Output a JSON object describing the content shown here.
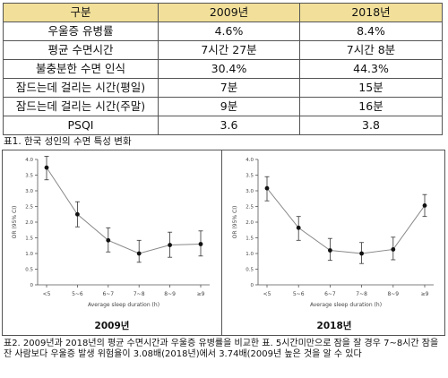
{
  "table": {
    "headers": [
      "구분",
      "2009년",
      "2018년"
    ],
    "rows": [
      [
        "우울증 유병률",
        "4.6%",
        "8.4%"
      ],
      [
        "평균 수면시간",
        "7시간 27분",
        "7시간 8분"
      ],
      [
        "불충분한 수면 인식",
        "30.4%",
        "44.3%"
      ],
      [
        "잠드는데 걸리는 시간(평일)",
        "7분",
        "15분"
      ],
      [
        "잠드는데 걸리는 시간(주말)",
        "9분",
        "16분"
      ],
      [
        "PSQI",
        "3.6",
        "3.8"
      ]
    ],
    "caption": "표1. 한국 성인의 수면 특성 변화"
  },
  "chart_data": [
    {
      "type": "line",
      "panel_label": "2009년",
      "xlabel": "Average sleep duration (h)",
      "ylabel": "OR (95% CI)",
      "categories": [
        "<5",
        "5~6",
        "6~7",
        "7~8",
        "8~9",
        "≥9"
      ],
      "values": [
        3.74,
        2.25,
        1.42,
        1.0,
        1.27,
        1.3
      ],
      "ci_low": [
        3.35,
        1.85,
        1.05,
        0.72,
        0.88,
        0.92
      ],
      "ci_high": [
        4.1,
        2.65,
        1.82,
        1.42,
        1.68,
        1.72
      ],
      "ylim": [
        0,
        4.0
      ],
      "yticks": [
        "0",
        "0.5",
        "1.0",
        "1.5",
        "2.0",
        "2.5",
        "3.0",
        "3.5",
        "4.0"
      ]
    },
    {
      "type": "line",
      "panel_label": "2018년",
      "xlabel": "Average sleep duration (h)",
      "ylabel": "OR (95% CI)",
      "categories": [
        "<5",
        "5~6",
        "6~7",
        "7~8",
        "8~9",
        "≥9"
      ],
      "values": [
        3.08,
        1.82,
        1.1,
        1.0,
        1.13,
        2.53
      ],
      "ci_low": [
        2.68,
        1.42,
        0.78,
        0.68,
        0.8,
        2.18
      ],
      "ci_high": [
        3.45,
        2.18,
        1.48,
        1.35,
        1.52,
        2.88
      ],
      "ylim": [
        0,
        4.0
      ],
      "yticks": [
        "0",
        "0.5",
        "1.0",
        "1.5",
        "2.0",
        "2.5",
        "3.0",
        "3.5",
        "4.0"
      ]
    }
  ],
  "caption2": "표2. 2009년과 2018년의 평균 수면시간과 우울증 유병률을 비교한 표. 5시간미만으로 잠을 잘 경우 7~8시간 잠을 잔 사람보다 우울증 발생 위험율이 3.08배(2018년)에서 3.74배(2009년 높은 것을 알 수 있다"
}
